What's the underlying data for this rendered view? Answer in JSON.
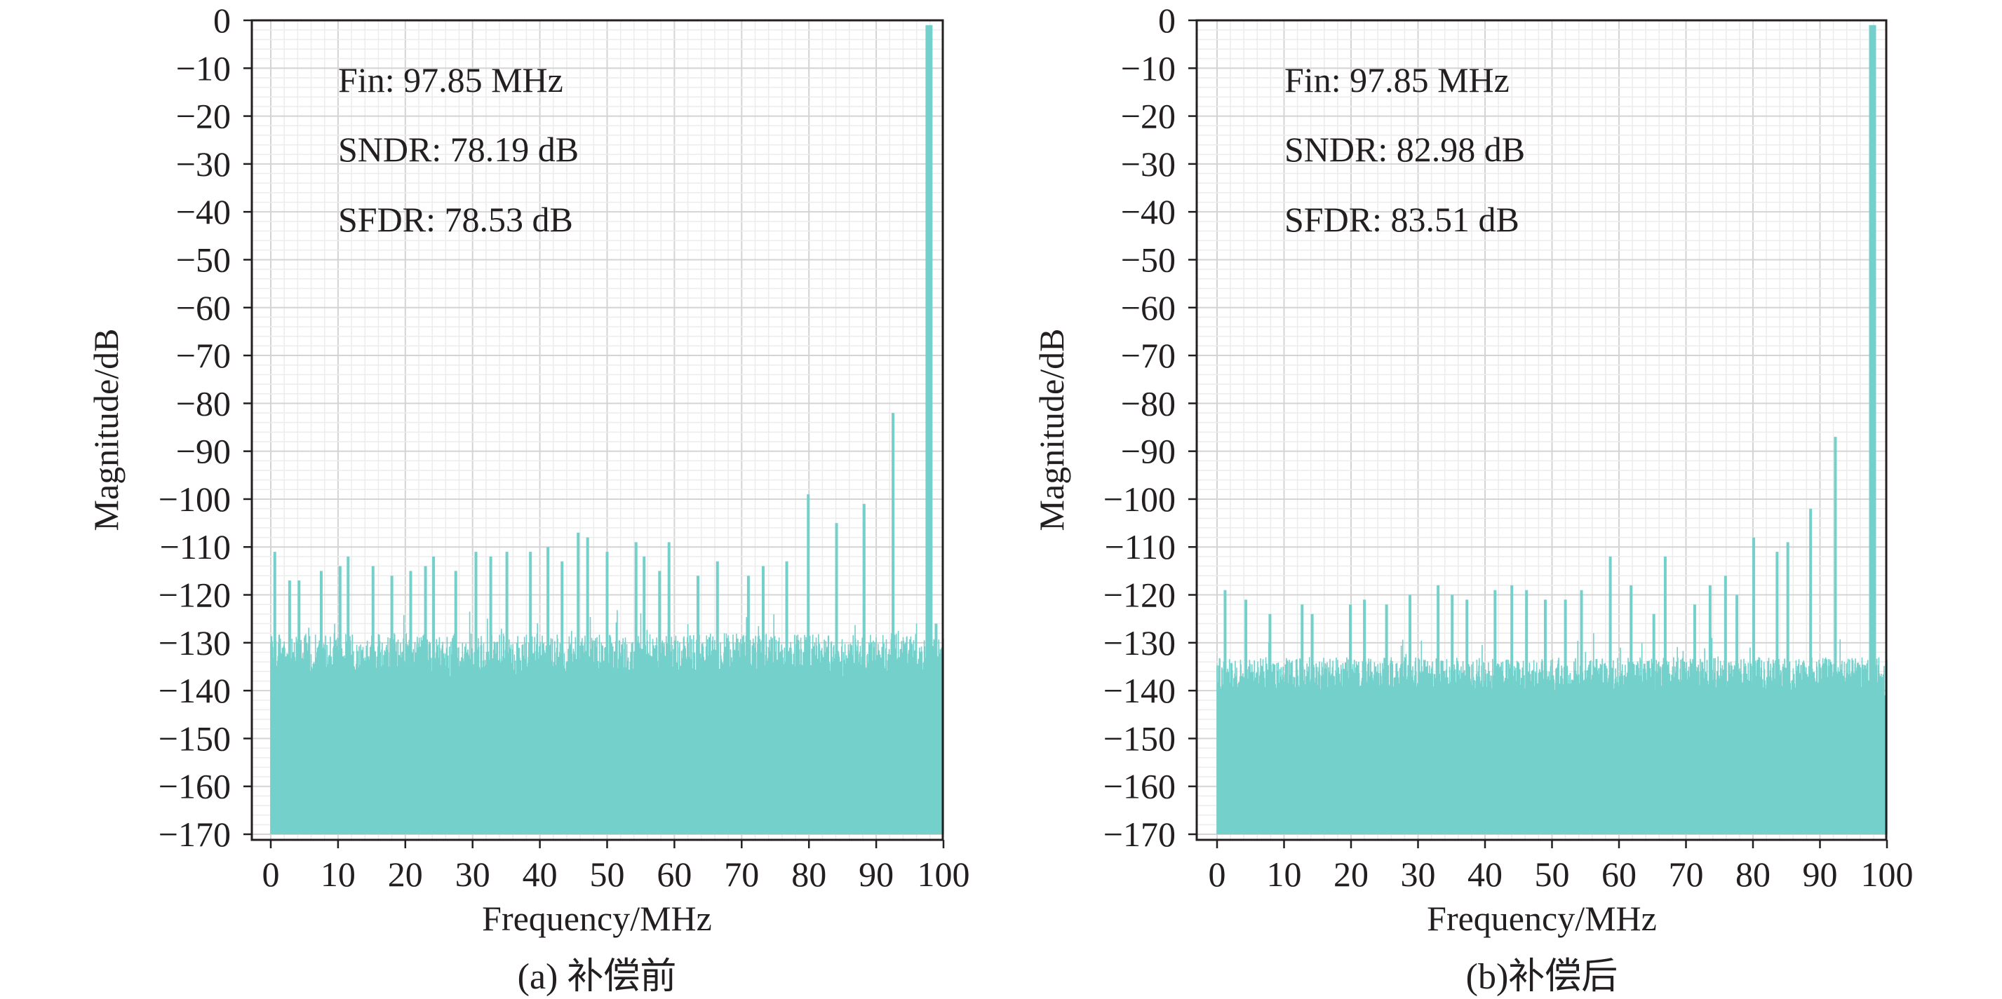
{
  "chart_data": [
    {
      "id": "a",
      "type": "spectrum",
      "caption": "(a) 补偿前",
      "xlabel": "Frequency/MHz",
      "ylabel": "Magnitude/dB",
      "xlim": [
        0,
        100
      ],
      "ylim": [
        -170,
        0
      ],
      "xticks": [
        0,
        10,
        20,
        30,
        40,
        50,
        60,
        70,
        80,
        90,
        100
      ],
      "xtick_labels": [
        "0",
        "10",
        "20",
        "30",
        "40",
        "50",
        "60",
        "70",
        "80",
        "90",
        "100"
      ],
      "yticks": [
        0,
        -10,
        -20,
        -30,
        -40,
        -50,
        -60,
        -70,
        -80,
        -90,
        -100,
        -110,
        -120,
        -130,
        -140,
        -150,
        -160,
        -170
      ],
      "ytick_labels": [
        "0",
        "−10",
        "−20",
        "−30",
        "−40",
        "−50",
        "−60",
        "−70",
        "−80",
        "−90",
        "−100",
        "−110",
        "−120",
        "−130",
        "−140",
        "−150",
        "−160",
        "−170"
      ],
      "annotations": [
        "Fin: 97.85 MHz",
        "SNDR: 78.19 dB",
        "SFDR: 78.53 dB"
      ],
      "grid": true,
      "color": "#74d0cb",
      "fundamental": {
        "freq": 97.85,
        "mag": -1
      },
      "noise_floor_top": -128,
      "noise_floor_variation": 8,
      "spurs": [
        {
          "freq": 0.6,
          "mag": -111
        },
        {
          "freq": 2.8,
          "mag": -117
        },
        {
          "freq": 4.2,
          "mag": -117
        },
        {
          "freq": 7.5,
          "mag": -115
        },
        {
          "freq": 10.3,
          "mag": -114
        },
        {
          "freq": 11.5,
          "mag": -112
        },
        {
          "freq": 15.2,
          "mag": -114
        },
        {
          "freq": 18.0,
          "mag": -116
        },
        {
          "freq": 20.8,
          "mag": -115
        },
        {
          "freq": 23.0,
          "mag": -114
        },
        {
          "freq": 24.2,
          "mag": -112
        },
        {
          "freq": 27.5,
          "mag": -115
        },
        {
          "freq": 30.5,
          "mag": -111
        },
        {
          "freq": 32.7,
          "mag": -112
        },
        {
          "freq": 35.1,
          "mag": -111
        },
        {
          "freq": 38.6,
          "mag": -111
        },
        {
          "freq": 41.2,
          "mag": -110
        },
        {
          "freq": 43.3,
          "mag": -113
        },
        {
          "freq": 45.7,
          "mag": -107
        },
        {
          "freq": 47.1,
          "mag": -108
        },
        {
          "freq": 50.0,
          "mag": -111
        },
        {
          "freq": 54.3,
          "mag": -109
        },
        {
          "freq": 55.5,
          "mag": -112
        },
        {
          "freq": 57.8,
          "mag": -115
        },
        {
          "freq": 59.2,
          "mag": -109
        },
        {
          "freq": 63.5,
          "mag": -116
        },
        {
          "freq": 66.4,
          "mag": -113
        },
        {
          "freq": 71.0,
          "mag": -116
        },
        {
          "freq": 73.2,
          "mag": -114
        },
        {
          "freq": 76.7,
          "mag": -113
        },
        {
          "freq": 79.9,
          "mag": -99
        },
        {
          "freq": 84.1,
          "mag": -105
        },
        {
          "freq": 88.2,
          "mag": -101
        },
        {
          "freq": 92.5,
          "mag": -82
        },
        {
          "freq": 98.9,
          "mag": -126
        }
      ]
    },
    {
      "id": "b",
      "type": "spectrum",
      "caption": "(b)补偿后",
      "xlabel": "Frequency/MHz",
      "ylabel": "Magnitude/dB",
      "xlim": [
        0,
        100
      ],
      "ylim": [
        -170,
        0
      ],
      "xticks": [
        0,
        10,
        20,
        30,
        40,
        50,
        60,
        70,
        80,
        90,
        100
      ],
      "xtick_labels": [
        "0",
        "10",
        "20",
        "30",
        "40",
        "50",
        "60",
        "70",
        "80",
        "90",
        "100"
      ],
      "yticks": [
        0,
        -10,
        -20,
        -30,
        -40,
        -50,
        -60,
        -70,
        -80,
        -90,
        -100,
        -110,
        -120,
        -130,
        -140,
        -150,
        -160,
        -170
      ],
      "ytick_labels": [
        "0",
        "−10",
        "−20",
        "−30",
        "−40",
        "−50",
        "−60",
        "−70",
        "−80",
        "−90",
        "−100",
        "−110",
        "−120",
        "−130",
        "−140",
        "−150",
        "−160",
        "−170"
      ],
      "annotations": [
        "Fin: 97.85 MHz",
        "SNDR: 82.98 dB",
        "SFDR: 83.51 dB"
      ],
      "grid": true,
      "color": "#74d0cb",
      "fundamental": {
        "freq": 97.85,
        "mag": -1
      },
      "noise_floor_top": -133,
      "noise_floor_variation": 7,
      "spurs": [
        {
          "freq": 1.2,
          "mag": -119
        },
        {
          "freq": 4.3,
          "mag": -121
        },
        {
          "freq": 7.9,
          "mag": -124
        },
        {
          "freq": 12.7,
          "mag": -122
        },
        {
          "freq": 14.2,
          "mag": -124
        },
        {
          "freq": 19.9,
          "mag": -122
        },
        {
          "freq": 22.0,
          "mag": -121
        },
        {
          "freq": 25.3,
          "mag": -122
        },
        {
          "freq": 28.8,
          "mag": -120
        },
        {
          "freq": 33.0,
          "mag": -118
        },
        {
          "freq": 35.1,
          "mag": -120
        },
        {
          "freq": 37.3,
          "mag": -121
        },
        {
          "freq": 41.5,
          "mag": -119
        },
        {
          "freq": 44.0,
          "mag": -118
        },
        {
          "freq": 46.2,
          "mag": -119
        },
        {
          "freq": 49.0,
          "mag": -121
        },
        {
          "freq": 52.0,
          "mag": -121
        },
        {
          "freq": 54.4,
          "mag": -119
        },
        {
          "freq": 58.7,
          "mag": -112
        },
        {
          "freq": 61.8,
          "mag": -118
        },
        {
          "freq": 65.2,
          "mag": -124
        },
        {
          "freq": 66.9,
          "mag": -112
        },
        {
          "freq": 71.3,
          "mag": -122
        },
        {
          "freq": 73.6,
          "mag": -118
        },
        {
          "freq": 75.9,
          "mag": -116
        },
        {
          "freq": 77.6,
          "mag": -120
        },
        {
          "freq": 80.1,
          "mag": -108
        },
        {
          "freq": 83.6,
          "mag": -111
        },
        {
          "freq": 85.2,
          "mag": -109
        },
        {
          "freq": 88.6,
          "mag": -102
        },
        {
          "freq": 92.3,
          "mag": -87
        }
      ]
    }
  ]
}
